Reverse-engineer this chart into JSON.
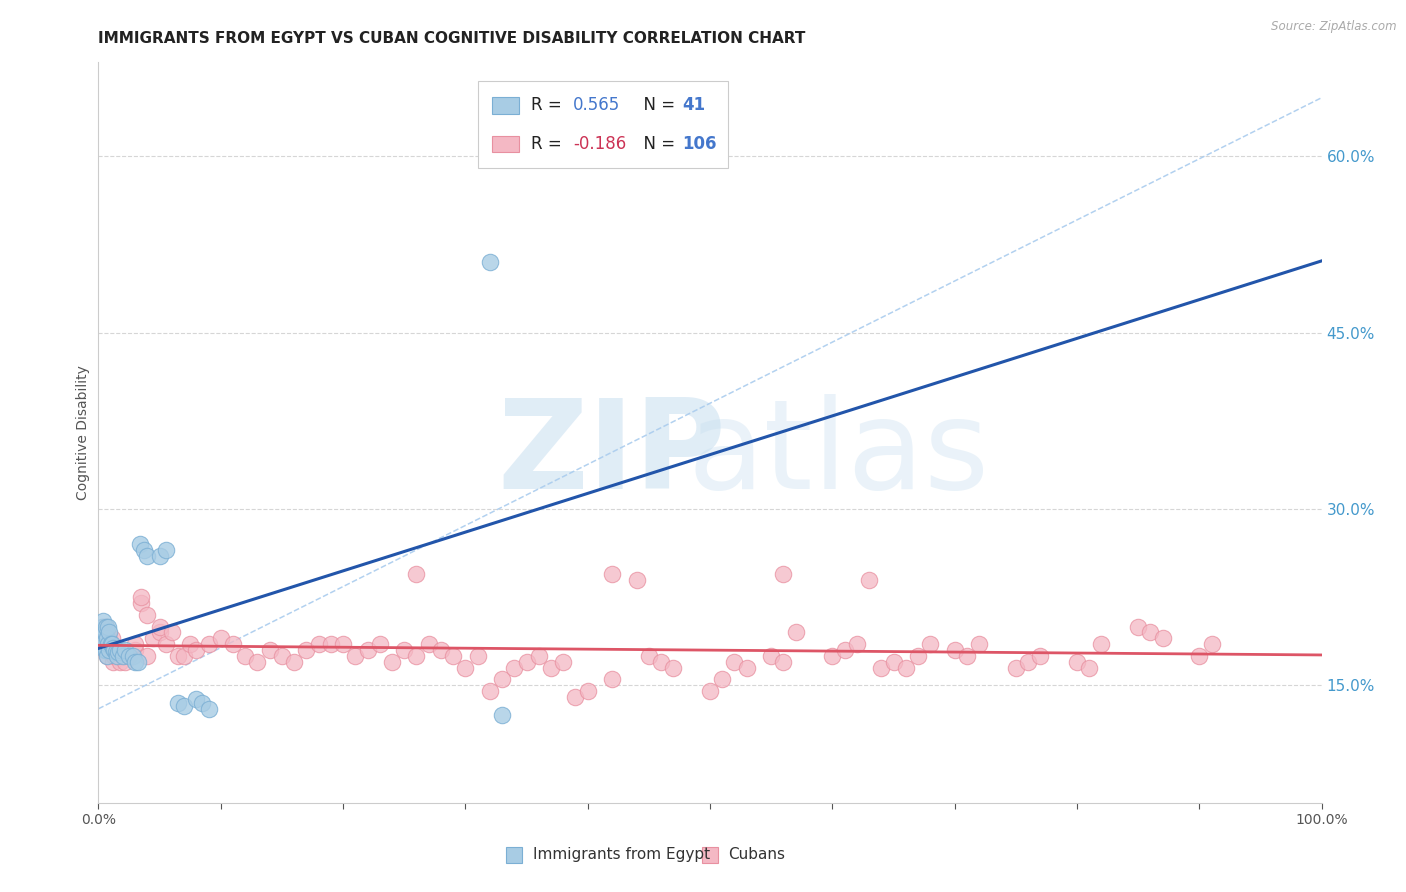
{
  "title": "IMMIGRANTS FROM EGYPT VS CUBAN COGNITIVE DISABILITY CORRELATION CHART",
  "source": "Source: ZipAtlas.com",
  "ylabel": "Cognitive Disability",
  "right_yticks": [
    0.15,
    0.3,
    0.45,
    0.6
  ],
  "xlim": [
    0.0,
    1.0
  ],
  "ylim": [
    0.05,
    0.68
  ],
  "egypt_color": "#a8cce4",
  "egypt_edge": "#7bafd4",
  "cuba_color": "#f4b8c4",
  "cuba_edge": "#e890a0",
  "egypt_R": 0.565,
  "egypt_N": 41,
  "cuba_R": -0.186,
  "cuba_N": 106,
  "egypt_scatter_x": [
    0.002,
    0.003,
    0.003,
    0.004,
    0.004,
    0.005,
    0.005,
    0.006,
    0.006,
    0.007,
    0.007,
    0.008,
    0.008,
    0.009,
    0.009,
    0.01,
    0.011,
    0.012,
    0.013,
    0.014,
    0.015,
    0.016,
    0.018,
    0.02,
    0.022,
    0.025,
    0.028,
    0.03,
    0.032,
    0.034,
    0.037,
    0.04,
    0.05,
    0.055,
    0.065,
    0.07,
    0.08,
    0.085,
    0.09,
    0.32,
    0.33
  ],
  "egypt_scatter_y": [
    0.195,
    0.19,
    0.2,
    0.185,
    0.205,
    0.18,
    0.195,
    0.18,
    0.2,
    0.175,
    0.19,
    0.185,
    0.2,
    0.18,
    0.195,
    0.185,
    0.185,
    0.182,
    0.18,
    0.178,
    0.175,
    0.178,
    0.18,
    0.175,
    0.18,
    0.175,
    0.175,
    0.17,
    0.17,
    0.27,
    0.265,
    0.26,
    0.26,
    0.265,
    0.135,
    0.132,
    0.138,
    0.135,
    0.13,
    0.51,
    0.125
  ],
  "cuba_scatter_x": [
    0.002,
    0.003,
    0.004,
    0.004,
    0.005,
    0.005,
    0.006,
    0.007,
    0.007,
    0.008,
    0.009,
    0.01,
    0.011,
    0.012,
    0.013,
    0.015,
    0.015,
    0.018,
    0.02,
    0.022,
    0.025,
    0.03,
    0.03,
    0.035,
    0.035,
    0.04,
    0.04,
    0.045,
    0.05,
    0.05,
    0.055,
    0.06,
    0.065,
    0.07,
    0.075,
    0.08,
    0.09,
    0.1,
    0.11,
    0.12,
    0.13,
    0.14,
    0.15,
    0.16,
    0.17,
    0.18,
    0.19,
    0.2,
    0.21,
    0.22,
    0.23,
    0.24,
    0.25,
    0.26,
    0.27,
    0.28,
    0.29,
    0.3,
    0.31,
    0.32,
    0.33,
    0.34,
    0.35,
    0.36,
    0.37,
    0.38,
    0.39,
    0.4,
    0.42,
    0.45,
    0.46,
    0.47,
    0.5,
    0.51,
    0.52,
    0.53,
    0.55,
    0.56,
    0.57,
    0.6,
    0.61,
    0.62,
    0.64,
    0.65,
    0.66,
    0.67,
    0.7,
    0.71,
    0.72,
    0.75,
    0.76,
    0.77,
    0.8,
    0.81,
    0.82,
    0.85,
    0.86,
    0.87,
    0.9,
    0.91,
    0.26,
    0.42,
    0.44,
    0.56,
    0.63,
    0.68
  ],
  "cuba_scatter_y": [
    0.195,
    0.19,
    0.185,
    0.2,
    0.18,
    0.195,
    0.2,
    0.175,
    0.195,
    0.18,
    0.19,
    0.185,
    0.19,
    0.17,
    0.175,
    0.175,
    0.18,
    0.17,
    0.175,
    0.17,
    0.175,
    0.18,
    0.185,
    0.22,
    0.225,
    0.21,
    0.175,
    0.19,
    0.195,
    0.2,
    0.185,
    0.195,
    0.175,
    0.175,
    0.185,
    0.18,
    0.185,
    0.19,
    0.185,
    0.175,
    0.17,
    0.18,
    0.175,
    0.17,
    0.18,
    0.185,
    0.185,
    0.185,
    0.175,
    0.18,
    0.185,
    0.17,
    0.18,
    0.175,
    0.185,
    0.18,
    0.175,
    0.165,
    0.175,
    0.145,
    0.155,
    0.165,
    0.17,
    0.175,
    0.165,
    0.17,
    0.14,
    0.145,
    0.155,
    0.175,
    0.17,
    0.165,
    0.145,
    0.155,
    0.17,
    0.165,
    0.175,
    0.17,
    0.195,
    0.175,
    0.18,
    0.185,
    0.165,
    0.17,
    0.165,
    0.175,
    0.18,
    0.175,
    0.185,
    0.165,
    0.17,
    0.175,
    0.17,
    0.165,
    0.185,
    0.2,
    0.195,
    0.19,
    0.175,
    0.185,
    0.245,
    0.245,
    0.24,
    0.245,
    0.24,
    0.185
  ],
  "bg_color": "#ffffff",
  "grid_color": "#cccccc",
  "title_fontsize": 11,
  "axis_label_fontsize": 10,
  "tick_fontsize": 10,
  "legend_text_color": "#333399",
  "legend_r_color": "#3333cc",
  "legend_neg_color": "#cc3366",
  "diag_color": "#aaccee"
}
